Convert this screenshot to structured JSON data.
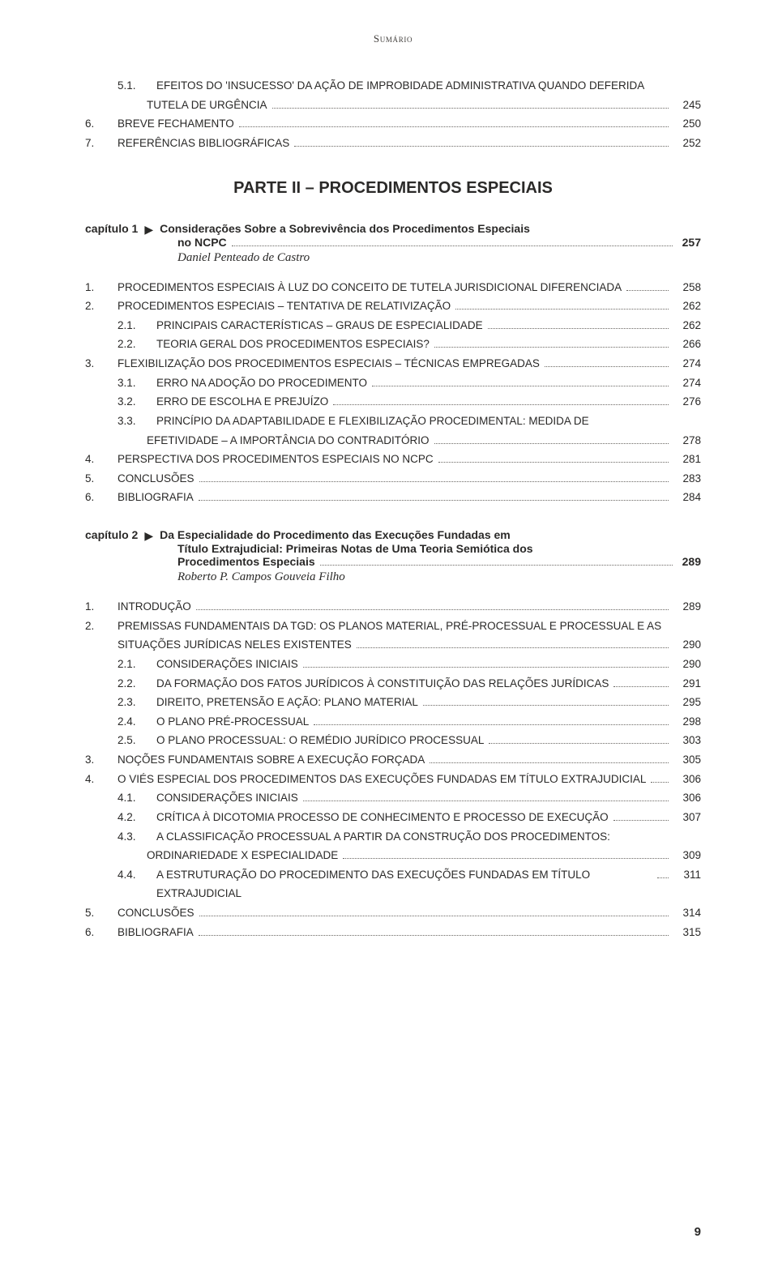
{
  "running_head": "Sumário",
  "page_number": "9",
  "colors": {
    "text": "#2a2928",
    "dot": "#6a6763",
    "background": "#ffffff"
  },
  "pre_part_rows": [
    {
      "level": 1,
      "num": "5.1.",
      "text": "EFEITOS DO 'INSUCESSO' DA AÇÃO DE IMPROBIDADE ADMINISTRATIVA QUANDO DEFERIDA",
      "cont": "TUTELA DE URGÊNCIA",
      "page": "245"
    },
    {
      "level": 0,
      "num": "6.",
      "text": "BREVE FECHAMENTO",
      "page": "250"
    },
    {
      "level": 0,
      "num": "7.",
      "text": "REFERÊNCIAS BIBLIOGRÁFICAS",
      "page": "252"
    }
  ],
  "part_title": "PARTE II – PROCEDIMENTOS ESPECIAIS",
  "chapter1": {
    "label": "capítulo 1",
    "title_line1": "Considerações Sobre a Sobrevivência dos Procedimentos Especiais",
    "title_line2": "no NCPC",
    "page": "257",
    "author": "Daniel Penteado de Castro"
  },
  "chapter1_rows": [
    {
      "level": 0,
      "num": "1.",
      "text": "PROCEDIMENTOS ESPECIAIS À LUZ DO CONCEITO DE TUTELA JURISDICIONAL DIFERENCIADA",
      "page": "258"
    },
    {
      "level": 0,
      "num": "2.",
      "text": "PROCEDIMENTOS ESPECIAIS – TENTATIVA DE RELATIVIZAÇÃO",
      "page": "262"
    },
    {
      "level": 1,
      "num": "2.1.",
      "text": "PRINCIPAIS CARACTERÍSTICAS – GRAUS DE ESPECIALIDADE",
      "page": "262"
    },
    {
      "level": 1,
      "num": "2.2.",
      "text": "TEORIA GERAL DOS PROCEDIMENTOS ESPECIAIS?",
      "page": "266"
    },
    {
      "level": 0,
      "num": "3.",
      "text": "FLEXIBILIZAÇÃO DOS PROCEDIMENTOS ESPECIAIS – TÉCNICAS EMPREGADAS",
      "page": "274"
    },
    {
      "level": 1,
      "num": "3.1.",
      "text": "ERRO NA ADOÇÃO DO PROCEDIMENTO",
      "page": "274"
    },
    {
      "level": 1,
      "num": "3.2.",
      "text": "ERRO DE ESCOLHA E PREJUÍZO",
      "page": "276"
    },
    {
      "level": 1,
      "num": "3.3.",
      "text": "PRINCÍPIO DA ADAPTABILIDADE E FLEXIBILIZAÇÃO PROCEDIMENTAL: MEDIDA DE",
      "cont": "EFETIVIDADE – A IMPORTÂNCIA DO CONTRADITÓRIO",
      "page": "278"
    },
    {
      "level": 0,
      "num": "4.",
      "text": "PERSPECTIVA DOS PROCEDIMENTOS ESPECIAIS NO NCPC",
      "page": "281"
    },
    {
      "level": 0,
      "num": "5.",
      "text": "CONCLUSÕES",
      "page": "283"
    },
    {
      "level": 0,
      "num": "6.",
      "text": "BIBLIOGRAFIA",
      "page": "284"
    }
  ],
  "chapter2": {
    "label": "capítulo 2",
    "title_line1": "Da Especialidade do Procedimento das Execuções Fundadas em",
    "title_line2": "Título Extrajudicial: Primeiras Notas de Uma Teoria Semiótica dos",
    "title_line3": "Procedimentos Especiais",
    "page": "289",
    "author": "Roberto P. Campos Gouveia Filho"
  },
  "chapter2_rows": [
    {
      "level": 0,
      "num": "1.",
      "text": "INTRODUÇÃO",
      "page": "289"
    },
    {
      "level": 0,
      "num": "2.",
      "text": "PREMISSAS FUNDAMENTAIS DA TGD: OS PLANOS MATERIAL, PRÉ-PROCESSUAL E PROCESSUAL E AS",
      "cont": "SITUAÇÕES JURÍDICAS NELES EXISTENTES",
      "page": "290"
    },
    {
      "level": 1,
      "num": "2.1.",
      "text": "CONSIDERAÇÕES INICIAIS",
      "page": "290"
    },
    {
      "level": 1,
      "num": "2.2.",
      "text": "DA FORMAÇÃO DOS FATOS JURÍDICOS À CONSTITUIÇÃO DAS RELAÇÕES JURÍDICAS",
      "page": "291"
    },
    {
      "level": 1,
      "num": "2.3.",
      "text": "DIREITO, PRETENSÃO E AÇÃO: PLANO MATERIAL",
      "page": "295"
    },
    {
      "level": 1,
      "num": "2.4.",
      "text": "O PLANO PRÉ-PROCESSUAL",
      "page": "298"
    },
    {
      "level": 1,
      "num": "2.5.",
      "text": "O PLANO PROCESSUAL: O REMÉDIO JURÍDICO PROCESSUAL",
      "page": "303"
    },
    {
      "level": 0,
      "num": "3.",
      "text": "NOÇÕES FUNDAMENTAIS SOBRE A EXECUÇÃO FORÇADA",
      "page": "305"
    },
    {
      "level": 0,
      "num": "4.",
      "text": "O VIÉS ESPECIAL DOS PROCEDIMENTOS DAS EXECUÇÕES FUNDADAS EM TÍTULO EXTRAJUDICIAL",
      "page": "306"
    },
    {
      "level": 1,
      "num": "4.1.",
      "text": "CONSIDERAÇÕES INICIAIS",
      "page": "306"
    },
    {
      "level": 1,
      "num": "4.2.",
      "text": "CRÍTICA À DICOTOMIA PROCESSO DE CONHECIMENTO E PROCESSO DE EXECUÇÃO",
      "page": "307"
    },
    {
      "level": 1,
      "num": "4.3.",
      "text": "A CLASSIFICAÇÃO PROCESSUAL A PARTIR DA CONSTRUÇÃO DOS PROCEDIMENTOS:",
      "cont": "ORDINARIEDADE X ESPECIALIDADE",
      "page": "309"
    },
    {
      "level": 1,
      "num": "4.4.",
      "text": "A ESTRUTURAÇÃO DO PROCEDIMENTO DAS EXECUÇÕES FUNDADAS EM TÍTULO EXTRAJUDICIAL",
      "page": "311"
    },
    {
      "level": 0,
      "num": "5.",
      "text": "CONCLUSÕES",
      "page": "314"
    },
    {
      "level": 0,
      "num": "6.",
      "text": "BIBLIOGRAFIA",
      "page": "315"
    }
  ]
}
